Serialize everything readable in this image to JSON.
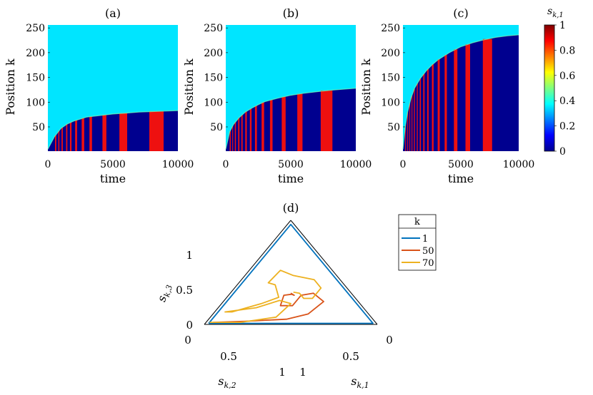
{
  "colorbar": {
    "label": "s_k,1",
    "ticks": [
      "0",
      "0.2",
      "0.4",
      "0.6",
      "0.8",
      "1"
    ],
    "colormap": "jet"
  },
  "chart_data": [
    {
      "type": "heatmap",
      "title": "(a)",
      "xlabel": "time",
      "ylabel": "Position k",
      "xticks": [
        "0",
        "5000",
        "10000"
      ],
      "yticks": [
        "50",
        "100",
        "150",
        "200",
        "250"
      ],
      "xlim": [
        0,
        10000
      ],
      "ylim": [
        1,
        256
      ],
      "background_value": 0.35,
      "front": [
        [
          0,
          5
        ],
        [
          500,
          30
        ],
        [
          1000,
          47
        ],
        [
          1500,
          56
        ],
        [
          2000,
          62
        ],
        [
          2500,
          66
        ],
        [
          3000,
          70
        ],
        [
          4000,
          73
        ],
        [
          5000,
          76
        ],
        [
          6000,
          78
        ],
        [
          7000,
          80
        ],
        [
          8000,
          81
        ],
        [
          9000,
          82
        ],
        [
          10000,
          83
        ]
      ],
      "red_bars": [
        [
          550,
          650
        ],
        [
          800,
          880
        ],
        [
          1050,
          1150
        ],
        [
          1400,
          1500
        ],
        [
          1700,
          1820
        ],
        [
          2100,
          2250
        ],
        [
          2600,
          2800
        ],
        [
          3200,
          3400
        ],
        [
          4200,
          4500
        ],
        [
          5500,
          6100
        ],
        [
          7800,
          8900
        ]
      ]
    },
    {
      "type": "heatmap",
      "title": "(b)",
      "xlabel": "time",
      "ylabel": "Position k",
      "xticks": [
        "0",
        "5000",
        "10000"
      ],
      "yticks": [
        "50",
        "100",
        "150",
        "200",
        "250"
      ],
      "xlim": [
        0,
        10000
      ],
      "ylim": [
        1,
        256
      ],
      "background_value": 0.35,
      "front": [
        [
          0,
          5
        ],
        [
          300,
          40
        ],
        [
          600,
          55
        ],
        [
          1000,
          68
        ],
        [
          1500,
          80
        ],
        [
          2000,
          88
        ],
        [
          2500,
          95
        ],
        [
          3000,
          101
        ],
        [
          4000,
          108
        ],
        [
          5000,
          114
        ],
        [
          6000,
          118
        ],
        [
          7000,
          121
        ],
        [
          8000,
          124
        ],
        [
          9000,
          126
        ],
        [
          10000,
          128
        ]
      ],
      "red_bars": [
        [
          300,
          380
        ],
        [
          500,
          560
        ],
        [
          700,
          780
        ],
        [
          950,
          1050
        ],
        [
          1200,
          1300
        ],
        [
          1500,
          1620
        ],
        [
          1850,
          1980
        ],
        [
          2250,
          2400
        ],
        [
          2750,
          2950
        ],
        [
          3400,
          3600
        ],
        [
          4300,
          4600
        ],
        [
          5500,
          5900
        ],
        [
          7300,
          8200
        ]
      ]
    },
    {
      "type": "heatmap",
      "title": "(c)",
      "xlabel": "time",
      "ylabel": "Position k",
      "xticks": [
        "0",
        "5000",
        "10000"
      ],
      "yticks": [
        "50",
        "100",
        "150",
        "200",
        "250"
      ],
      "xlim": [
        0,
        10000
      ],
      "ylim": [
        1,
        256
      ],
      "background_value": 0.35,
      "front": [
        [
          0,
          5
        ],
        [
          200,
          50
        ],
        [
          400,
          80
        ],
        [
          700,
          108
        ],
        [
          1000,
          128
        ],
        [
          1500,
          148
        ],
        [
          2000,
          163
        ],
        [
          2500,
          175
        ],
        [
          3000,
          185
        ],
        [
          4000,
          200
        ],
        [
          5000,
          212
        ],
        [
          6000,
          220
        ],
        [
          7000,
          226
        ],
        [
          8000,
          231
        ],
        [
          9000,
          234
        ],
        [
          10000,
          236
        ]
      ],
      "red_bars": [
        [
          200,
          260
        ],
        [
          380,
          440
        ],
        [
          560,
          620
        ],
        [
          750,
          820
        ],
        [
          950,
          1030
        ],
        [
          1200,
          1280
        ],
        [
          1450,
          1550
        ],
        [
          1750,
          1860
        ],
        [
          2100,
          2220
        ],
        [
          2500,
          2650
        ],
        [
          3000,
          3180
        ],
        [
          3600,
          3800
        ],
        [
          4400,
          4700
        ],
        [
          5400,
          5800
        ],
        [
          6900,
          7700
        ]
      ]
    },
    {
      "type": "line",
      "subtype": "ternary",
      "title": "(d)",
      "axes": [
        {
          "label": "s_k,1",
          "ticks": [
            "0",
            "0.5",
            "1"
          ]
        },
        {
          "label": "s_k,2",
          "ticks": [
            "0",
            "0.5",
            "1"
          ]
        },
        {
          "label": "s_k,3",
          "ticks": [
            "0",
            "0.5",
            "1"
          ]
        }
      ],
      "legend": {
        "title": "k",
        "placement": "top-right"
      },
      "series": [
        {
          "name": "1",
          "color": "#0072bd",
          "points": [
            [
              0.02,
              0.97,
              0.01
            ],
            [
              0.97,
              0.02,
              0.01
            ],
            [
              0.02,
              0.02,
              0.96
            ],
            [
              0.02,
              0.97,
              0.01
            ]
          ]
        },
        {
          "name": "50",
          "color": "#d95319",
          "points": [
            [
              0.04,
              0.94,
              0.02
            ],
            [
              0.22,
              0.75,
              0.03
            ],
            [
              0.45,
              0.5,
              0.05
            ],
            [
              0.55,
              0.35,
              0.1
            ],
            [
              0.58,
              0.2,
              0.22
            ],
            [
              0.48,
              0.22,
              0.3
            ],
            [
              0.42,
              0.3,
              0.28
            ],
            [
              0.42,
              0.4,
              0.18
            ],
            [
              0.35,
              0.47,
              0.18
            ],
            [
              0.32,
              0.4,
              0.28
            ],
            [
              0.36,
              0.35,
              0.29
            ],
            [
              0.38,
              0.34,
              0.28
            ],
            [
              0.35,
              0.35,
              0.3
            ]
          ]
        },
        {
          "name": "70",
          "color": "#edb120",
          "points": [
            [
              0.02,
              0.96,
              0.02
            ],
            [
              0.2,
              0.78,
              0.02
            ],
            [
              0.38,
              0.55,
              0.07
            ],
            [
              0.4,
              0.4,
              0.2
            ],
            [
              0.32,
              0.45,
              0.23
            ],
            [
              0.22,
              0.62,
              0.16
            ],
            [
              0.06,
              0.82,
              0.12
            ],
            [
              0.1,
              0.78,
              0.12
            ],
            [
              0.23,
              0.57,
              0.2
            ],
            [
              0.3,
              0.44,
              0.26
            ],
            [
              0.22,
              0.4,
              0.38
            ],
            [
              0.17,
              0.43,
              0.4
            ],
            [
              0.18,
              0.3,
              0.52
            ],
            [
              0.28,
              0.25,
              0.47
            ],
            [
              0.42,
              0.15,
              0.43
            ],
            [
              0.5,
              0.15,
              0.35
            ],
            [
              0.5,
              0.25,
              0.25
            ],
            [
              0.45,
              0.3,
              0.25
            ],
            [
              0.4,
              0.3,
              0.3
            ],
            [
              0.36,
              0.33,
              0.31
            ]
          ]
        }
      ]
    }
  ]
}
